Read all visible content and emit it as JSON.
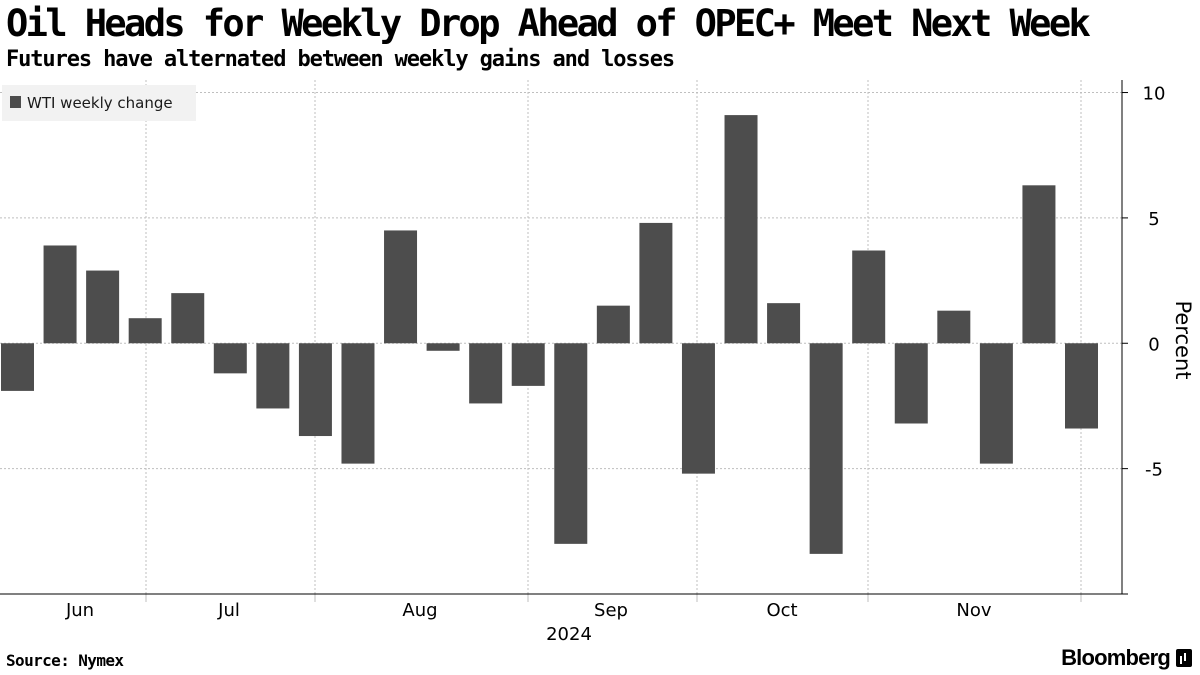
{
  "header": {
    "title": "Oil Heads for Weekly Drop Ahead of OPEC+ Meet Next Week",
    "subtitle": "Futures have alternated between weekly gains and losses"
  },
  "footer": {
    "source": "Source: Nymex",
    "brand": "Bloomberg",
    "brand_icon": "bloomberg-terminal-icon"
  },
  "colors": {
    "bar": "#4d4d4d",
    "grid": "#bfbfbf",
    "legend_bg": "#f2f2f2",
    "axis": "#000000"
  },
  "chart_data": {
    "type": "bar",
    "title": "Oil Heads for Weekly Drop Ahead of OPEC+ Meet Next Week",
    "subtitle": "Futures have alternated between weekly gains and losses",
    "series": [
      {
        "name": "WTI weekly change",
        "values": [
          -1.9,
          3.9,
          2.9,
          1.0,
          2.0,
          -1.2,
          -2.6,
          -3.7,
          -4.8,
          4.5,
          -0.3,
          -2.4,
          -1.7,
          -8.0,
          1.5,
          4.8,
          -5.2,
          9.1,
          1.6,
          -8.4,
          3.7,
          -3.2,
          1.3,
          -4.8,
          6.3,
          -3.4
        ]
      }
    ],
    "x_month_labels": [
      "Jun",
      "Jul",
      "Aug",
      "Sep",
      "Oct",
      "Nov"
    ],
    "x_year_label": "2024",
    "ylabel": "Percent",
    "ylim": [
      -10,
      10.5
    ],
    "yticks": [
      10,
      5,
      0,
      -5
    ],
    "ytick_labels": [
      "10",
      "5",
      "0",
      "-5"
    ],
    "grid": true,
    "legend": "top-left",
    "y_axis_side": "right"
  }
}
